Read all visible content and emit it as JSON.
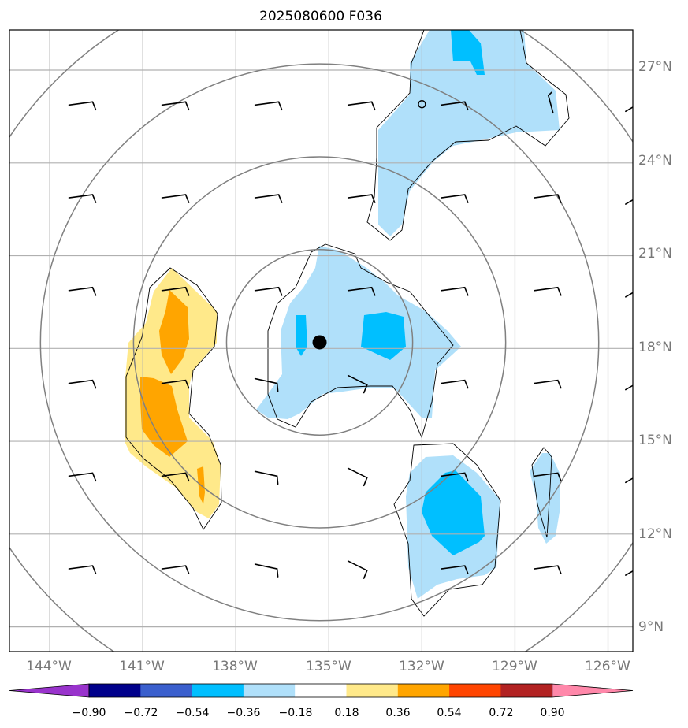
{
  "title": "2025080600 F036",
  "map": {
    "lon_ticks": [
      "144°W",
      "141°W",
      "138°W",
      "135°W",
      "132°W",
      "129°W",
      "126°W"
    ],
    "lat_ticks": [
      "27°N",
      "24°N",
      "21°N",
      "18°N",
      "15°N",
      "12°N",
      "9°N"
    ],
    "lon_range": [
      -145.3,
      -125.2
    ],
    "lat_range": [
      8.2,
      28.3
    ],
    "center": {
      "lon": -135.3,
      "lat": 18.2
    },
    "ring_radius_deg": [
      3,
      6,
      9,
      12
    ],
    "secondary_marker": {
      "lon": -132.0,
      "lat": 25.9
    },
    "colors": {
      "blue_light": "#b0e0fa",
      "blue_medium": "#00bfff",
      "yellow": "#ffe98a",
      "orange": "#ffa500"
    }
  },
  "colorbar": {
    "labels": [
      "−0.90",
      "−0.72",
      "−0.54",
      "−0.36",
      "−0.18",
      "0.18",
      "0.36",
      "0.54",
      "0.72",
      "0.90"
    ],
    "colors": [
      "#9933cc",
      "#00008b",
      "#3a5fcd",
      "#00bfff",
      "#b0e0fa",
      "#ffffff",
      "#ffe98a",
      "#ffa500",
      "#ff4500",
      "#b22222",
      "#ff88aa"
    ]
  }
}
